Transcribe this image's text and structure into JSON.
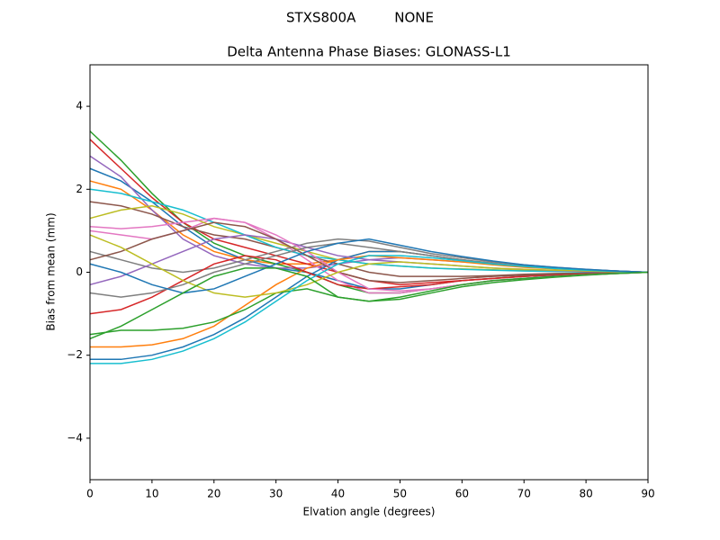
{
  "chart_data": {
    "type": "line",
    "suptitle": "STXS800A         NONE",
    "title": "Delta Antenna Phase Biases: GLONASS-L1",
    "xlabel": "Elvation angle (degrees)",
    "ylabel": "Bias from mean (mm)",
    "xlim": [
      0,
      90
    ],
    "ylim": [
      -5,
      5
    ],
    "xticks": [
      0,
      10,
      20,
      30,
      40,
      50,
      60,
      70,
      80,
      90
    ],
    "yticks": [
      {
        "value": -4,
        "label": "−4"
      },
      {
        "value": -2,
        "label": "−2"
      },
      0,
      2,
      4
    ],
    "x": [
      0,
      5,
      10,
      15,
      20,
      25,
      30,
      35,
      40,
      45,
      50,
      55,
      60,
      65,
      70,
      75,
      80,
      85,
      90
    ],
    "series": [
      {
        "color": "#1f77b4",
        "values": [
          2.5,
          2.2,
          1.7,
          1.1,
          0.6,
          0.3,
          0.1,
          0.0,
          -0.2,
          -0.4,
          -0.4,
          -0.3,
          -0.2,
          -0.15,
          -0.1,
          -0.07,
          -0.04,
          -0.02,
          0
        ]
      },
      {
        "color": "#ff7f0e",
        "values": [
          2.2,
          2.0,
          1.5,
          0.9,
          0.5,
          0.3,
          0.2,
          0.2,
          0.3,
          0.5,
          0.5,
          0.4,
          0.3,
          0.2,
          0.15,
          0.1,
          0.06,
          0.03,
          0
        ]
      },
      {
        "color": "#2ca02c",
        "values": [
          3.4,
          2.7,
          1.9,
          1.2,
          0.7,
          0.4,
          0.2,
          0.0,
          -0.3,
          -0.5,
          -0.5,
          -0.4,
          -0.3,
          -0.2,
          -0.15,
          -0.1,
          -0.06,
          -0.03,
          0
        ]
      },
      {
        "color": "#d62728",
        "values": [
          3.2,
          2.5,
          1.8,
          1.2,
          0.8,
          0.6,
          0.4,
          0.2,
          0.0,
          -0.2,
          -0.3,
          -0.25,
          -0.2,
          -0.15,
          -0.1,
          -0.06,
          -0.04,
          -0.02,
          0
        ]
      },
      {
        "color": "#9467bd",
        "values": [
          2.8,
          2.3,
          1.5,
          0.8,
          0.4,
          0.2,
          0.1,
          0.1,
          0.2,
          0.3,
          0.35,
          0.3,
          0.25,
          0.2,
          0.15,
          0.1,
          0.06,
          0.03,
          0
        ]
      },
      {
        "color": "#8c564b",
        "values": [
          1.7,
          1.6,
          1.4,
          1.1,
          0.9,
          0.8,
          0.6,
          0.4,
          0.2,
          0.0,
          -0.1,
          -0.1,
          -0.1,
          -0.08,
          -0.05,
          -0.03,
          -0.02,
          -0.01,
          0
        ]
      },
      {
        "color": "#e377c2",
        "values": [
          1.0,
          0.9,
          0.8,
          1.0,
          1.3,
          1.2,
          0.8,
          0.3,
          -0.2,
          -0.5,
          -0.5,
          -0.4,
          -0.3,
          -0.2,
          -0.15,
          -0.1,
          -0.06,
          -0.03,
          0
        ]
      },
      {
        "color": "#7f7f7f",
        "values": [
          0.5,
          0.3,
          0.1,
          0.0,
          0.1,
          0.3,
          0.5,
          0.7,
          0.8,
          0.75,
          0.6,
          0.45,
          0.35,
          0.25,
          0.18,
          0.12,
          0.07,
          0.03,
          0
        ]
      },
      {
        "color": "#bcbd22",
        "values": [
          1.3,
          1.5,
          1.6,
          1.4,
          1.1,
          0.9,
          0.7,
          0.5,
          0.3,
          0.2,
          0.15,
          0.1,
          0.08,
          0.06,
          0.04,
          0.03,
          0.02,
          0.01,
          0
        ]
      },
      {
        "color": "#17becf",
        "values": [
          2.0,
          1.9,
          1.7,
          1.5,
          1.2,
          0.9,
          0.6,
          0.4,
          0.3,
          0.2,
          0.15,
          0.1,
          0.07,
          0.05,
          0.03,
          0.02,
          0.01,
          0.005,
          0
        ]
      },
      {
        "color": "#1f77b4",
        "values": [
          -2.1,
          -2.1,
          -2.0,
          -1.8,
          -1.5,
          -1.1,
          -0.6,
          -0.1,
          0.3,
          0.5,
          0.5,
          0.4,
          0.3,
          0.2,
          0.15,
          0.1,
          0.06,
          0.03,
          0
        ]
      },
      {
        "color": "#ff7f0e",
        "values": [
          -1.8,
          -1.8,
          -1.75,
          -1.6,
          -1.3,
          -0.8,
          -0.3,
          0.1,
          0.3,
          0.4,
          0.35,
          0.3,
          0.25,
          0.18,
          0.12,
          0.08,
          0.05,
          0.02,
          0
        ]
      },
      {
        "color": "#2ca02c",
        "values": [
          -1.5,
          -1.4,
          -1.4,
          -1.35,
          -1.2,
          -0.9,
          -0.5,
          -0.4,
          -0.6,
          -0.7,
          -0.65,
          -0.5,
          -0.35,
          -0.25,
          -0.18,
          -0.12,
          -0.07,
          -0.03,
          0
        ]
      },
      {
        "color": "#d62728",
        "values": [
          -1.0,
          -0.9,
          -0.6,
          -0.2,
          0.2,
          0.4,
          0.3,
          0.0,
          -0.3,
          -0.4,
          -0.35,
          -0.3,
          -0.2,
          -0.15,
          -0.1,
          -0.06,
          -0.04,
          -0.02,
          0
        ]
      },
      {
        "color": "#9467bd",
        "values": [
          -0.3,
          -0.1,
          0.2,
          0.5,
          0.8,
          0.9,
          0.8,
          0.6,
          0.4,
          0.3,
          0.25,
          0.2,
          0.15,
          0.1,
          0.07,
          0.04,
          0.02,
          0.01,
          0
        ]
      },
      {
        "color": "#8c564b",
        "values": [
          0.3,
          0.5,
          0.8,
          1.0,
          1.2,
          1.1,
          0.8,
          0.4,
          0.0,
          -0.2,
          -0.25,
          -0.2,
          -0.15,
          -0.1,
          -0.07,
          -0.04,
          -0.02,
          -0.01,
          0
        ]
      },
      {
        "color": "#e377c2",
        "values": [
          1.1,
          1.05,
          1.1,
          1.2,
          1.3,
          1.2,
          0.9,
          0.5,
          0.0,
          -0.4,
          -0.45,
          -0.4,
          -0.3,
          -0.2,
          -0.15,
          -0.1,
          -0.06,
          -0.03,
          0
        ]
      },
      {
        "color": "#7f7f7f",
        "values": [
          -0.5,
          -0.6,
          -0.5,
          -0.3,
          0.0,
          0.2,
          0.4,
          0.6,
          0.7,
          0.6,
          0.5,
          0.4,
          0.3,
          0.22,
          0.15,
          0.1,
          0.06,
          0.03,
          0
        ]
      },
      {
        "color": "#bcbd22",
        "values": [
          0.9,
          0.6,
          0.2,
          -0.2,
          -0.5,
          -0.6,
          -0.5,
          -0.3,
          0.0,
          0.2,
          0.25,
          0.2,
          0.15,
          0.1,
          0.07,
          0.05,
          0.03,
          0.01,
          0
        ]
      },
      {
        "color": "#17becf",
        "values": [
          -2.2,
          -2.2,
          -2.1,
          -1.9,
          -1.6,
          -1.2,
          -0.7,
          -0.2,
          0.2,
          0.4,
          0.4,
          0.35,
          0.28,
          0.2,
          0.14,
          0.09,
          0.05,
          0.02,
          0
        ]
      },
      {
        "color": "#1f77b4",
        "values": [
          0.2,
          0.0,
          -0.3,
          -0.5,
          -0.4,
          -0.1,
          0.2,
          0.5,
          0.7,
          0.8,
          0.65,
          0.5,
          0.38,
          0.27,
          0.18,
          0.12,
          0.07,
          0.03,
          0
        ]
      },
      {
        "color": "#2ca02c",
        "values": [
          -1.6,
          -1.3,
          -0.9,
          -0.5,
          -0.1,
          0.1,
          0.1,
          -0.1,
          -0.6,
          -0.7,
          -0.6,
          -0.45,
          -0.3,
          -0.2,
          -0.15,
          -0.1,
          -0.06,
          -0.03,
          0
        ]
      }
    ]
  }
}
